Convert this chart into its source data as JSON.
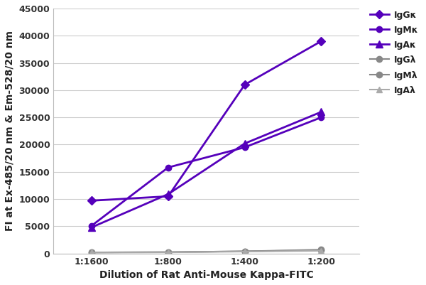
{
  "x_labels": [
    "1:1600",
    "1:800",
    "1:400",
    "1:200"
  ],
  "x_values": [
    0,
    1,
    2,
    3
  ],
  "series": [
    {
      "name": "IgGκ",
      "values": [
        9700,
        10500,
        31000,
        39000
      ],
      "color": "#5500bb",
      "marker": "D",
      "linewidth": 2.0,
      "markersize": 6
    },
    {
      "name": "IgMκ",
      "values": [
        5100,
        15800,
        19500,
        25000
      ],
      "color": "#5500bb",
      "marker": "o",
      "linewidth": 2.0,
      "markersize": 6
    },
    {
      "name": "IgAκ",
      "values": [
        4800,
        10900,
        20200,
        26000
      ],
      "color": "#5500bb",
      "marker": "^",
      "linewidth": 2.0,
      "markersize": 7
    },
    {
      "name": "IgGλ",
      "values": [
        200,
        250,
        400,
        700
      ],
      "color": "#888888",
      "marker": "o",
      "linewidth": 1.5,
      "markersize": 6
    },
    {
      "name": "IgMλ",
      "values": [
        200,
        250,
        400,
        600
      ],
      "color": "#888888",
      "marker": "o",
      "linewidth": 1.5,
      "markersize": 6
    },
    {
      "name": "IgAλ",
      "values": [
        150,
        200,
        350,
        500
      ],
      "color": "#aaaaaa",
      "marker": "^",
      "linewidth": 1.5,
      "markersize": 6
    }
  ],
  "xlabel": "Dilution of Rat Anti-Mouse Kappa-FITC",
  "ylabel": "FI at Ex-485/20 nm & Em-528/20 nm",
  "ylim": [
    0,
    45000
  ],
  "yticks": [
    0,
    5000,
    10000,
    15000,
    20000,
    25000,
    30000,
    35000,
    40000,
    45000
  ],
  "background_color": "#ffffff",
  "grid_color": "#cccccc",
  "legend_fontsize": 9,
  "axis_label_fontsize": 10,
  "tick_fontsize": 9
}
